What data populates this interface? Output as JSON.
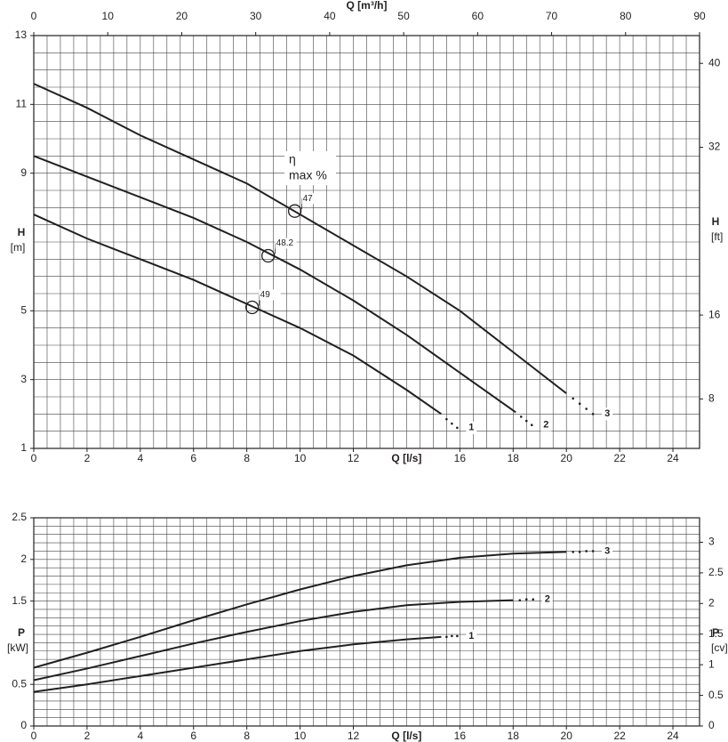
{
  "chart_data": [
    {
      "type": "line",
      "x_label": "Q [l/s]",
      "x2_label": "Q [m³/h]",
      "y_label": "H",
      "y_unit": "[m]",
      "y2_label": "H",
      "y2_unit": "[ft]",
      "xlim": [
        0,
        25
      ],
      "xticks": [
        0,
        2,
        4,
        6,
        8,
        10,
        12,
        16,
        18,
        20,
        22,
        24
      ],
      "x2lim": [
        0,
        90
      ],
      "x2ticks": [
        0,
        10,
        20,
        30,
        40,
        50,
        60,
        70,
        80,
        90
      ],
      "ylim": [
        1,
        13
      ],
      "yticks": [
        1,
        3,
        5,
        9,
        11,
        13
      ],
      "y2lim": [
        3.281,
        42.651
      ],
      "y2ticks": [
        8,
        16,
        32,
        40
      ],
      "grid": true,
      "grid_step_x": 0.5,
      "grid_step_y": 0.5,
      "series": [
        {
          "name": "1",
          "color": "#231f20",
          "x": [
            0,
            2,
            4,
            6,
            8,
            10,
            12,
            14,
            15.3
          ],
          "values": [
            7.8,
            7.1,
            6.5,
            5.9,
            5.2,
            4.5,
            3.7,
            2.7,
            2.0
          ],
          "dotted_x": [
            15.5,
            15.7,
            15.9
          ],
          "dotted_values": [
            1.85,
            1.72,
            1.6
          ]
        },
        {
          "name": "2",
          "color": "#231f20",
          "x": [
            0,
            2,
            4,
            6,
            8,
            10,
            12,
            14,
            16,
            18.1
          ],
          "values": [
            9.5,
            8.9,
            8.3,
            7.7,
            7.0,
            6.2,
            5.3,
            4.3,
            3.2,
            2.05
          ],
          "dotted_x": [
            18.3,
            18.5,
            18.7
          ],
          "dotted_values": [
            1.92,
            1.8,
            1.68
          ]
        },
        {
          "name": "3",
          "color": "#231f20",
          "x": [
            0,
            2,
            4,
            6,
            8,
            10,
            12,
            14,
            16,
            18,
            20
          ],
          "values": [
            11.6,
            10.9,
            10.1,
            9.4,
            8.7,
            7.8,
            6.9,
            6.0,
            5.0,
            3.8,
            2.6
          ],
          "dotted_x": [
            20.25,
            20.5,
            20.75,
            21.0
          ],
          "dotted_values": [
            2.45,
            2.3,
            2.15,
            2.0
          ]
        }
      ],
      "efficiency_label": [
        "η",
        "max %"
      ],
      "efficiency_points": [
        {
          "x": 8.2,
          "y": 5.1,
          "efficiency": 49
        },
        {
          "x": 8.8,
          "y": 6.6,
          "efficiency": 48.2
        },
        {
          "x": 9.8,
          "y": 7.9,
          "efficiency": 47
        }
      ]
    },
    {
      "type": "line",
      "x_label": "Q [l/s]",
      "y_label": "P",
      "y_unit": "[kW]",
      "y2_label": "P",
      "y2_unit": "[cv]",
      "xlim": [
        0,
        25
      ],
      "xticks": [
        0,
        2,
        4,
        6,
        8,
        10,
        12,
        16,
        18,
        20,
        22,
        24
      ],
      "ylim": [
        0,
        2.5
      ],
      "yticks": [
        0,
        0.5,
        1.5,
        2,
        2.5
      ],
      "y2lim": [
        0,
        3.399
      ],
      "y2ticks": [
        0,
        0.5,
        1,
        1.5,
        2,
        2.5,
        3
      ],
      "grid": true,
      "grid_step_x": 0.5,
      "grid_step_y": 0.1,
      "series": [
        {
          "name": "1",
          "color": "#231f20",
          "x": [
            0,
            2,
            4,
            6,
            8,
            10,
            12,
            14,
            15.3
          ],
          "values": [
            0.41,
            0.5,
            0.6,
            0.7,
            0.8,
            0.9,
            0.98,
            1.04,
            1.07
          ],
          "dotted_x": [
            15.5,
            15.7,
            15.9
          ],
          "dotted_values": [
            1.07,
            1.08,
            1.08
          ]
        },
        {
          "name": "2",
          "color": "#231f20",
          "x": [
            0,
            2,
            4,
            6,
            8,
            10,
            12,
            14,
            16,
            18
          ],
          "values": [
            0.55,
            0.69,
            0.84,
            0.99,
            1.13,
            1.26,
            1.37,
            1.45,
            1.49,
            1.51
          ],
          "dotted_x": [
            18.25,
            18.5,
            18.75
          ],
          "dotted_values": [
            1.51,
            1.52,
            1.52
          ]
        },
        {
          "name": "3",
          "color": "#231f20",
          "x": [
            0,
            2,
            4,
            6,
            8,
            10,
            12,
            14,
            16,
            18,
            20
          ],
          "values": [
            0.7,
            0.88,
            1.07,
            1.27,
            1.46,
            1.64,
            1.8,
            1.93,
            2.02,
            2.07,
            2.09
          ],
          "dotted_x": [
            20.25,
            20.5,
            20.75,
            21.0
          ],
          "dotted_values": [
            2.09,
            2.09,
            2.1,
            2.1
          ]
        }
      ]
    }
  ]
}
